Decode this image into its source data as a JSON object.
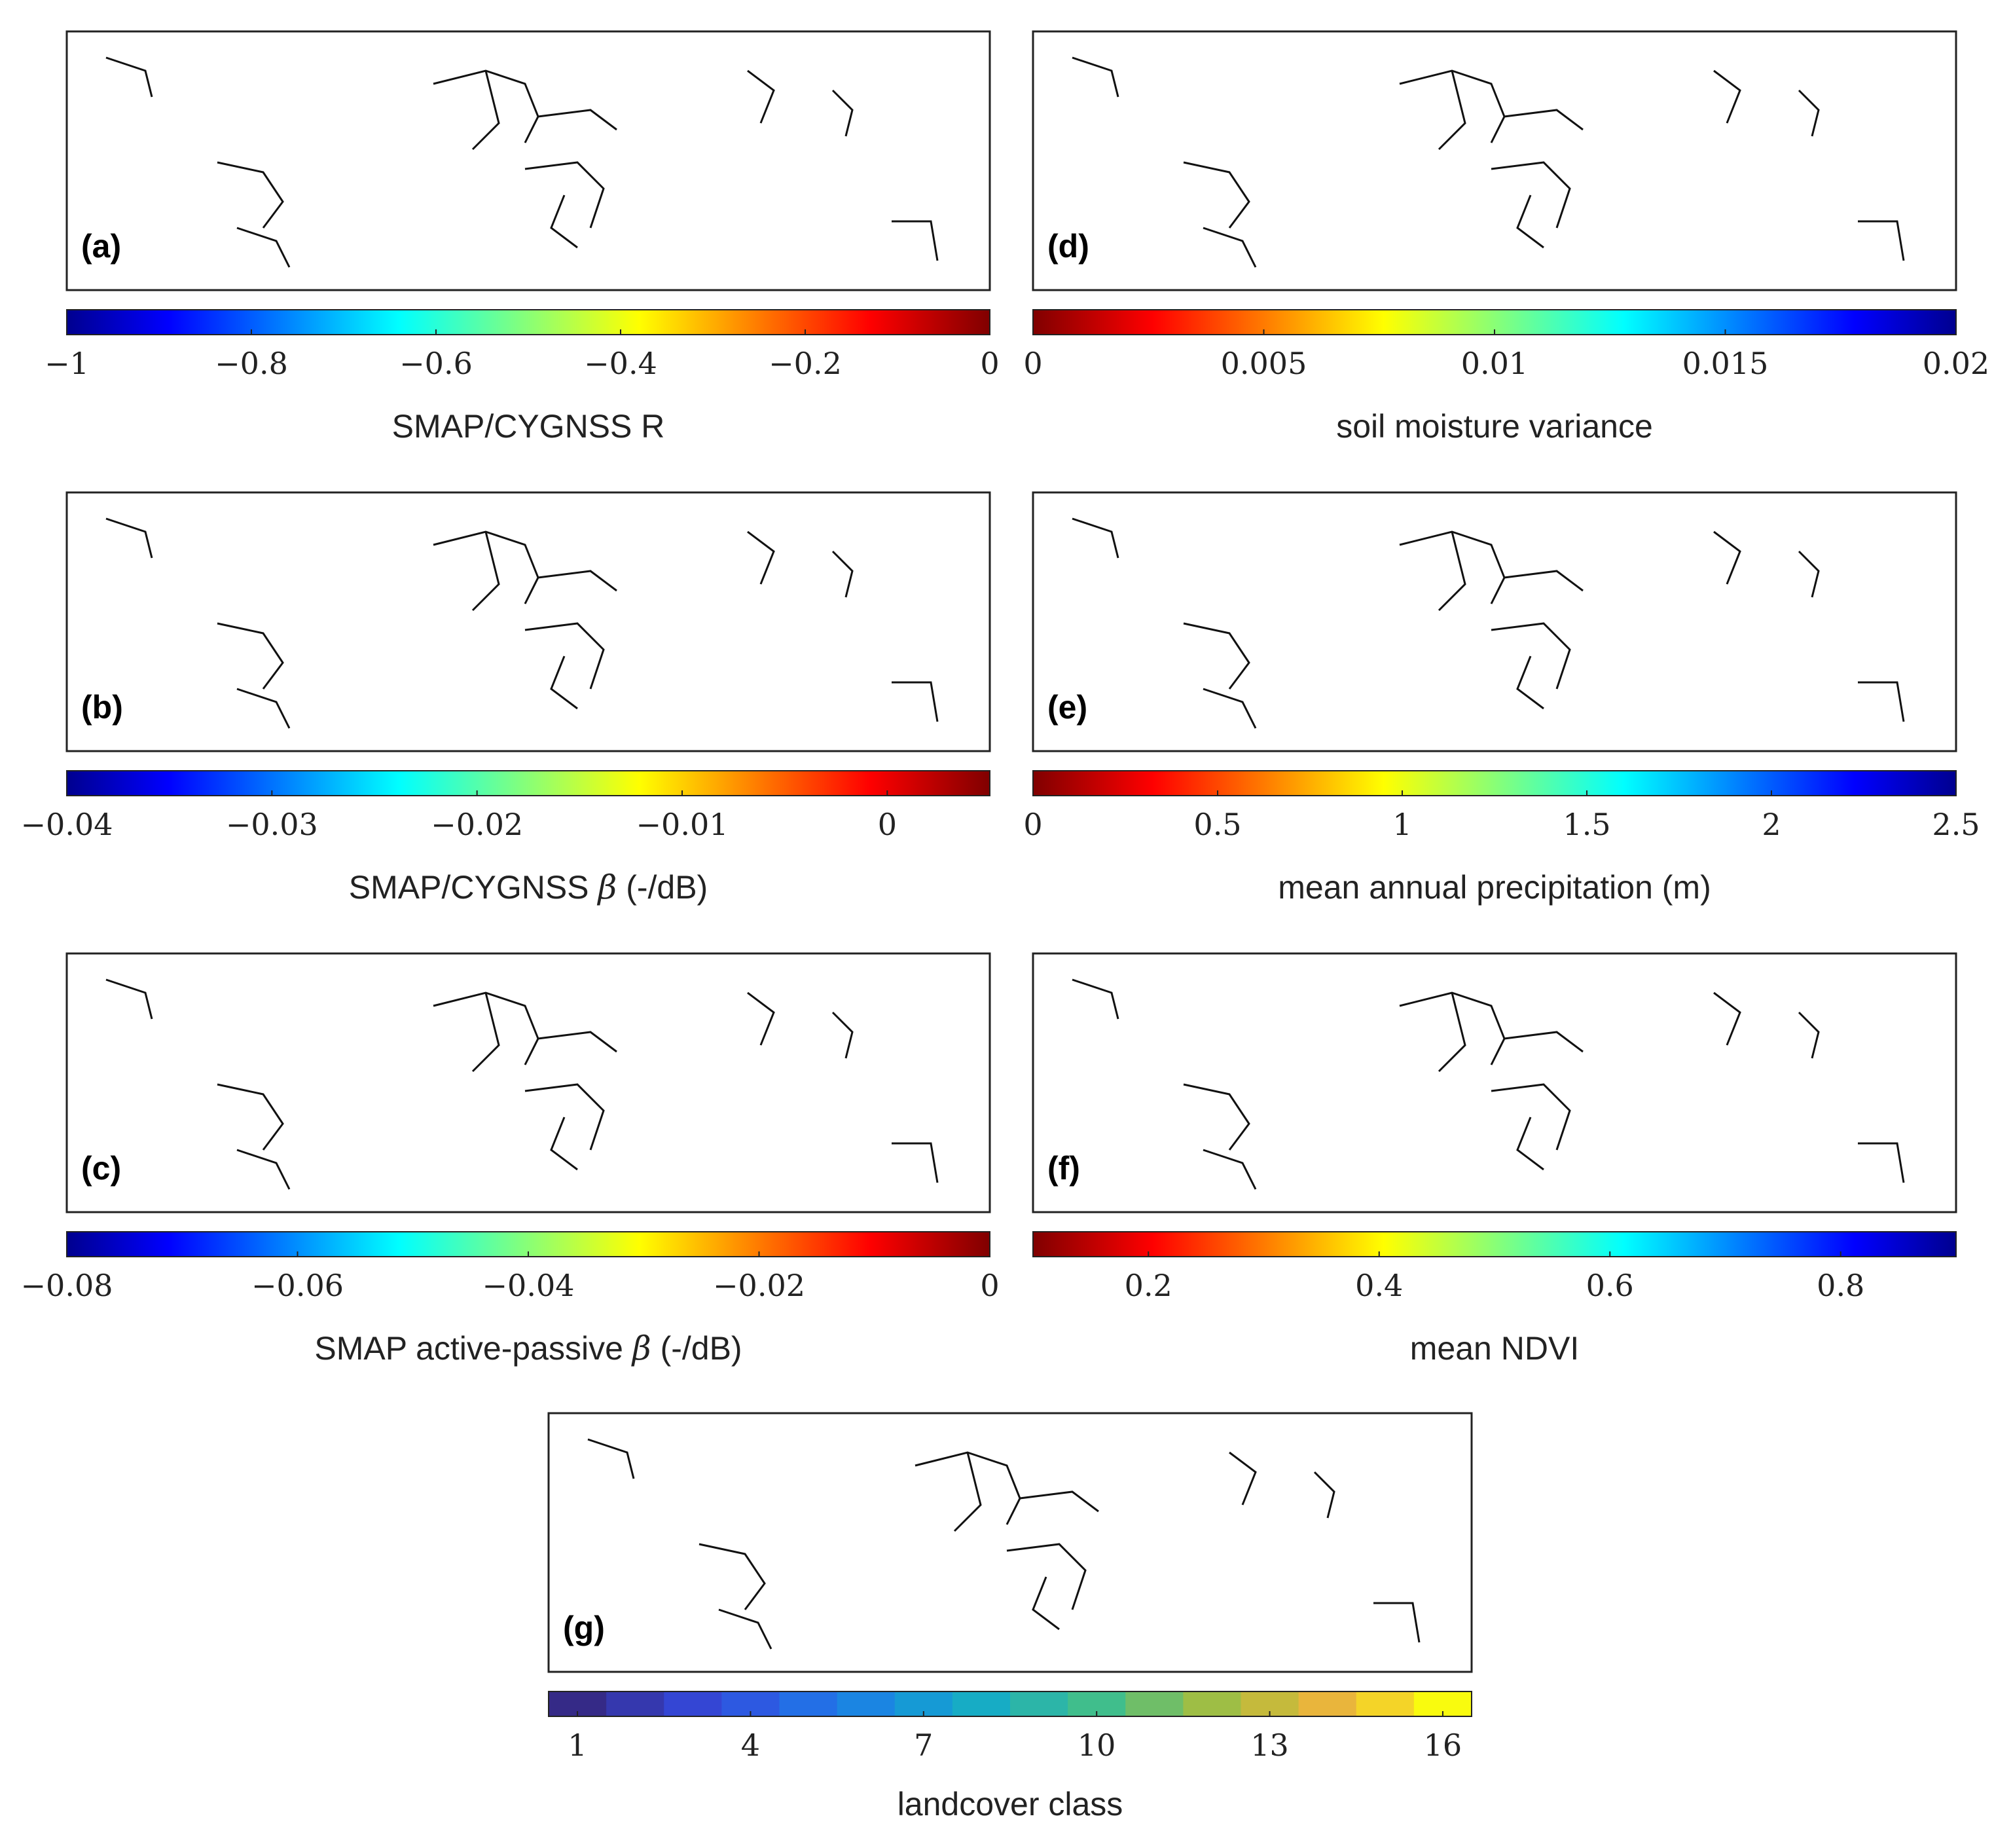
{
  "chart_data": [
    {
      "type": "heatmap",
      "panel": "(a)",
      "colorbar_label": "SMAP/CYGNSS R",
      "colormap": "jet",
      "reversed": false,
      "range": [
        -1,
        0
      ],
      "ticks": [
        -1,
        -0.8,
        -0.6,
        -0.4,
        -0.2,
        0
      ],
      "tick_labels": [
        "−1",
        "−0.8",
        "−0.6",
        "−0.4",
        "−0.2",
        "0"
      ]
    },
    {
      "type": "heatmap",
      "panel": "(b)",
      "colorbar_label_parts": [
        "SMAP/CYGNSS ",
        "β",
        " (-/dB)"
      ],
      "colormap": "jet",
      "reversed": false,
      "range": [
        -0.04,
        0.005
      ],
      "ticks": [
        -0.04,
        -0.03,
        -0.02,
        -0.01,
        0
      ],
      "tick_labels": [
        "−0.04",
        "−0.03",
        "−0.02",
        "−0.01",
        "0"
      ]
    },
    {
      "type": "heatmap",
      "panel": "(c)",
      "colorbar_label_parts": [
        "SMAP active-passive ",
        "β",
        " (-/dB)"
      ],
      "colormap": "jet",
      "reversed": false,
      "range": [
        -0.08,
        0
      ],
      "ticks": [
        -0.08,
        -0.06,
        -0.04,
        -0.02,
        0
      ],
      "tick_labels": [
        "−0.08",
        "−0.06",
        "−0.04",
        "−0.02",
        "0"
      ]
    },
    {
      "type": "heatmap",
      "panel": "(d)",
      "colorbar_label": "soil moisture variance",
      "colormap": "jet",
      "reversed": true,
      "range": [
        0,
        0.02
      ],
      "ticks": [
        0,
        0.005,
        0.01,
        0.015,
        0.02
      ],
      "tick_labels": [
        "0",
        "0.005",
        "0.01",
        "0.015",
        "0.02"
      ]
    },
    {
      "type": "heatmap",
      "panel": "(e)",
      "colorbar_label": "mean annual precipitation (m)",
      "colormap": "jet",
      "reversed": true,
      "range": [
        0,
        2.5
      ],
      "ticks": [
        0,
        0.5,
        1,
        1.5,
        2,
        2.5
      ],
      "tick_labels": [
        "0",
        "0.5",
        "1",
        "1.5",
        "2",
        "2.5"
      ]
    },
    {
      "type": "heatmap",
      "panel": "(f)",
      "colorbar_label": "mean NDVI",
      "colormap": "jet",
      "reversed": true,
      "range": [
        0.1,
        0.9
      ],
      "ticks": [
        0.2,
        0.4,
        0.6,
        0.8
      ],
      "tick_labels": [
        "0.2",
        "0.4",
        "0.6",
        "0.8"
      ]
    },
    {
      "type": "heatmap",
      "panel": "(g)",
      "colorbar_label": "landcover class",
      "colormap": "parula-discrete",
      "classes": 16,
      "range": [
        0.5,
        16.5
      ],
      "ticks": [
        1,
        4,
        7,
        10,
        13,
        16
      ],
      "tick_labels": [
        "1",
        "4",
        "7",
        "10",
        "13",
        "16"
      ]
    }
  ]
}
